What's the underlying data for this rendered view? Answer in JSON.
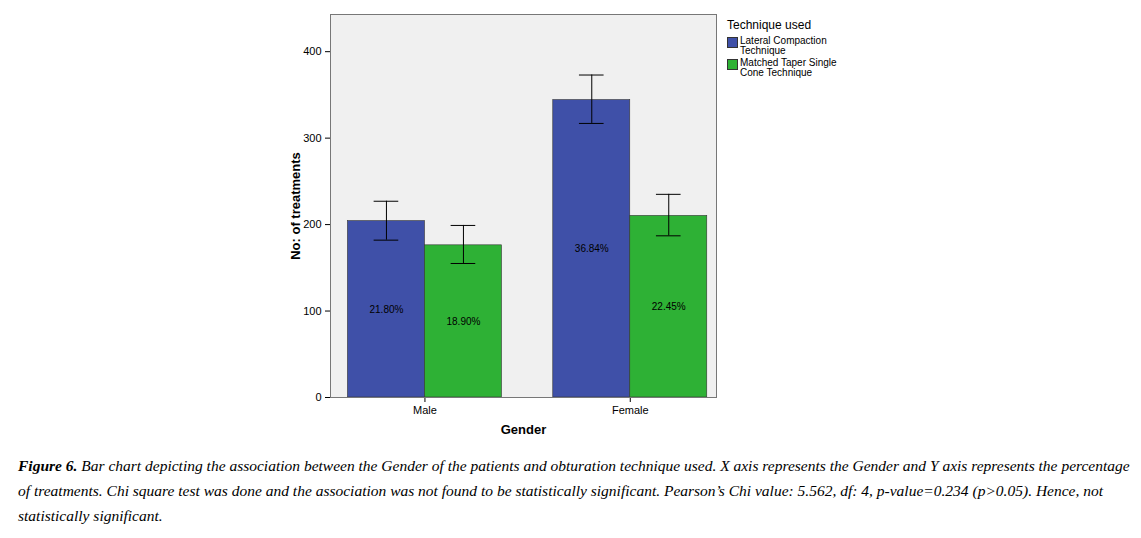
{
  "chart_data": {
    "type": "bar",
    "categories": [
      "Male",
      "Female"
    ],
    "x_label": "Gender",
    "y_label": "No: of treatments",
    "legend_title": "Technique used",
    "legend": "right",
    "grid": false,
    "ylim": [
      0,
      443
    ],
    "yticks": [
      0,
      100,
      200,
      300,
      400
    ],
    "series": [
      {
        "name": "Lateral Compaction Technique",
        "color": "#3f50a8",
        "values": [
          204,
          344
        ],
        "error_low": [
          182,
          317
        ],
        "error_high": [
          227,
          373
        ],
        "percent_labels": [
          "21.80%",
          "36.84%"
        ]
      },
      {
        "name": "Matched Taper Single Cone Technique",
        "color": "#2eb135",
        "values": [
          176,
          210
        ],
        "error_low": [
          155,
          187
        ],
        "error_high": [
          199,
          235
        ],
        "percent_labels": [
          "18.90%",
          "22.45%"
        ]
      }
    ],
    "caption_label": "Figure 6.",
    "caption": "Bar chart depicting the association between the Gender of the patients and obturation technique used. X axis represents the Gender and Y axis represents the percentage of treatments. Chi square test was done and the association was not found to be statistically significant. Pearson’s Chi value: 5.562, df: 4, p-value=0.234 (p>0.05). Hence, not statistically significant."
  }
}
